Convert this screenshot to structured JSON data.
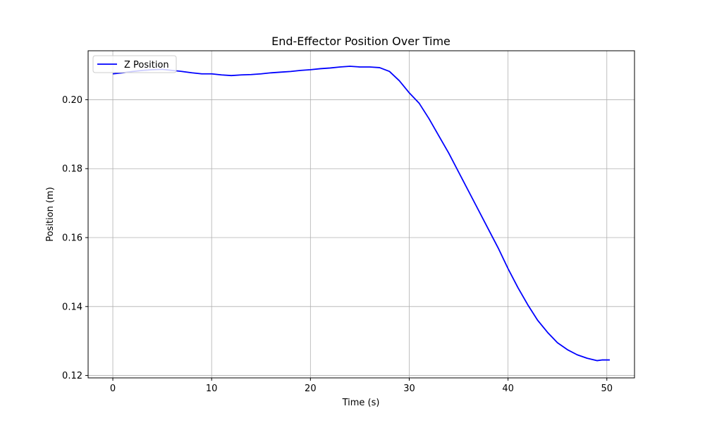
{
  "chart_data": {
    "type": "line",
    "title": "End-Effector Position Over Time",
    "xlabel": "Time (s)",
    "ylabel": "Position (m)",
    "xlim": [
      -2.5,
      52.8
    ],
    "ylim": [
      0.1193,
      0.2142
    ],
    "x_ticks": [
      0,
      10,
      20,
      30,
      40,
      50
    ],
    "y_ticks": [
      0.12,
      0.14,
      0.16,
      0.18,
      0.2
    ],
    "x_tick_labels": [
      "0",
      "10",
      "20",
      "30",
      "40",
      "50"
    ],
    "y_tick_labels": [
      "0.12",
      "0.14",
      "0.16",
      "0.18",
      "0.20"
    ],
    "grid": true,
    "legend_position": "top-left",
    "series": [
      {
        "name": "Z Position",
        "color": "#0000ff",
        "x": [
          0,
          1,
          2,
          3,
          4,
          5,
          6,
          7,
          8,
          9,
          10,
          11,
          12,
          13,
          14,
          15,
          16,
          17,
          18,
          19,
          20,
          21,
          22,
          23,
          24,
          25,
          26,
          27,
          28,
          29,
          30,
          31,
          32,
          33,
          34,
          35,
          36,
          37,
          38,
          39,
          40,
          41,
          42,
          43,
          44,
          45,
          46,
          47,
          48,
          49,
          49.5,
          50.3
        ],
        "y": [
          0.2075,
          0.2078,
          0.2082,
          0.2085,
          0.2087,
          0.2088,
          0.2085,
          0.2082,
          0.2078,
          0.2075,
          0.2075,
          0.2072,
          0.207,
          0.2072,
          0.2073,
          0.2075,
          0.2078,
          0.208,
          0.2082,
          0.2085,
          0.2087,
          0.209,
          0.2092,
          0.2095,
          0.2097,
          0.2095,
          0.2095,
          0.2093,
          0.2082,
          0.2055,
          0.202,
          0.199,
          0.1945,
          0.1895,
          0.1845,
          0.179,
          0.1735,
          0.168,
          0.1625,
          0.157,
          0.151,
          0.1455,
          0.1405,
          0.136,
          0.1325,
          0.1295,
          0.1275,
          0.126,
          0.125,
          0.1243,
          0.1245,
          0.1245
        ]
      }
    ]
  }
}
